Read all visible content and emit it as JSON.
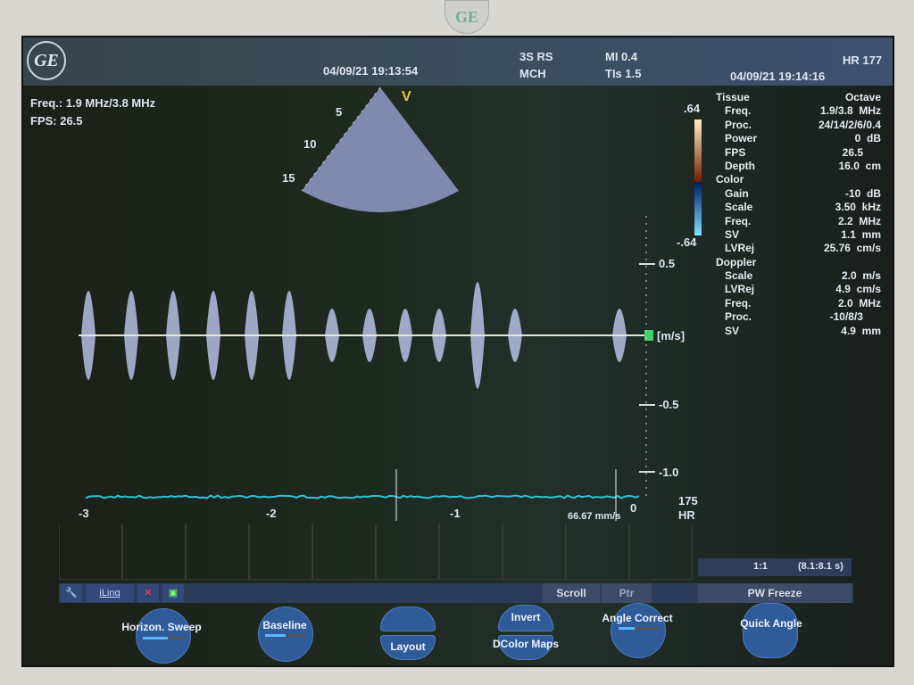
{
  "bezel": {
    "logo": "GE"
  },
  "header": {
    "logo": "GE",
    "date_left": "04/09/21 19:13:54",
    "probe": "3S RS",
    "preset": "MCH",
    "mi": "MI 0.4",
    "tis": "TIs 1.5",
    "hr": "HR 177",
    "date_right": "04/09/21 19:14:16"
  },
  "image_info": {
    "freq": "Freq.: 1.9 MHz/3.8 MHz",
    "fps": "FPS: 26.5"
  },
  "sector": {
    "marker": "V",
    "depths": [
      "5",
      "10",
      "15"
    ]
  },
  "color_bar": {
    "top": ".64",
    "bottom": "-.64"
  },
  "velocity_scale": {
    "ticks": [
      "0.5",
      "-0.5",
      "-1.0"
    ],
    "unit": "[m/s]"
  },
  "time_axis": {
    "ticks": [
      "-3",
      "-2",
      "-1",
      "0"
    ],
    "sweep": "66.67 mm/s"
  },
  "hr_box": {
    "value": "175",
    "label": "HR"
  },
  "params": [
    {
      "k": "Tissue",
      "v": "Octave",
      "indent": 0
    },
    {
      "k": "Freq.",
      "v": "1.9/3.8  MHz",
      "indent": 1
    },
    {
      "k": "Proc.",
      "v": "24/14/2/6/0.4",
      "indent": 1
    },
    {
      "k": "Power",
      "v": "0  dB",
      "indent": 1
    },
    {
      "k": "FPS",
      "v": "26.5      ",
      "indent": 1
    },
    {
      "k": "Depth",
      "v": "16.0  cm",
      "indent": 1
    },
    {
      "k": "Color",
      "v": "",
      "indent": 0
    },
    {
      "k": "Gain",
      "v": "-10  dB",
      "indent": 1
    },
    {
      "k": "Scale",
      "v": "3.50  kHz",
      "indent": 1
    },
    {
      "k": "Freq.",
      "v": "2.2  MHz",
      "indent": 1
    },
    {
      "k": "SV",
      "v": "1.1  mm",
      "indent": 1
    },
    {
      "k": "LVRej",
      "v": "25.76  cm/s",
      "indent": 1
    },
    {
      "k": "Doppler",
      "v": "",
      "indent": 0
    },
    {
      "k": "Scale",
      "v": "2.0  m/s",
      "indent": 1
    },
    {
      "k": "LVRej",
      "v": "4.9  cm/s",
      "indent": 1
    },
    {
      "k": "Freq.",
      "v": "2.0  MHz",
      "indent": 1
    },
    {
      "k": "Proc.",
      "v": "-10/8/3      ",
      "indent": 1
    },
    {
      "k": "SV",
      "v": "4.9  mm",
      "indent": 1
    }
  ],
  "cine": {
    "ratio": "1:1",
    "range": "(8.1:8.1 s)"
  },
  "toolbar": {
    "wrench": "wrench-icon",
    "iling": "iLinq",
    "scroll": "Scroll",
    "ptr": "Ptr",
    "freeze": "PW Freeze"
  },
  "softkeys": {
    "horizon_sweep": "Horizon. Sweep",
    "baseline": "Baseline",
    "layout": "Layout",
    "invert": "Invert",
    "dcolor_maps": "DColor Maps",
    "angle_correct": "Angle Correct",
    "quick_angle": "Quick Angle"
  },
  "sliders": {
    "horizon_sweep": 0.6,
    "baseline": 0.5,
    "angle_correct": 0.4
  },
  "colors": {
    "trace": "#c8d4ff",
    "ecg": "#2ec3d6",
    "accent": "#e8c24a",
    "marker": "#3fd16b"
  }
}
